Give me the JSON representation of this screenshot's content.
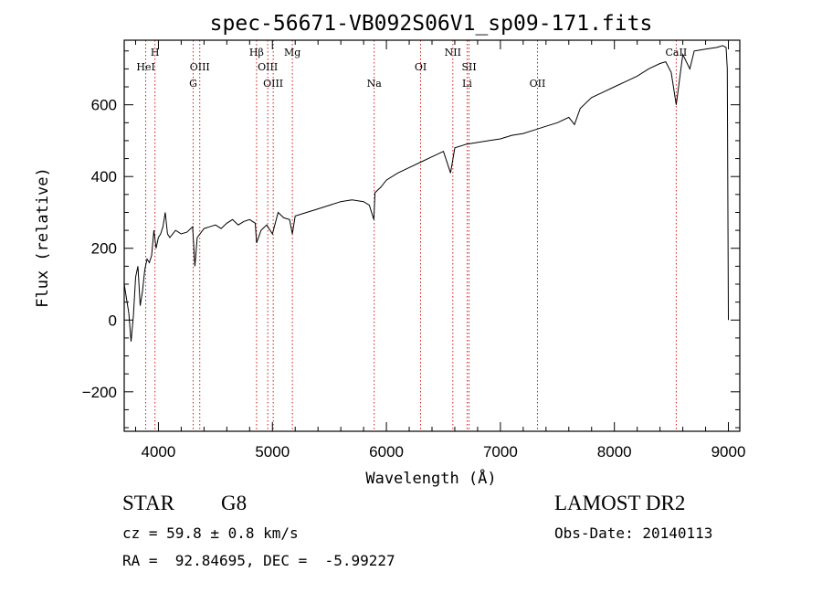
{
  "chart_data": {
    "type": "line",
    "title": "spec-56671-VB092S06V1_sp09-171.fits",
    "xlabel": "Wavelength (Å)",
    "ylabel": "Flux (relative)",
    "xlim": [
      3700,
      9100
    ],
    "ylim": [
      -310,
      780
    ],
    "x_ticks": [
      4000,
      5000,
      6000,
      7000,
      8000,
      9000
    ],
    "y_ticks": [
      -200,
      0,
      200,
      400,
      600
    ],
    "x_tick_labels": [
      "4000",
      "5000",
      "6000",
      "7000",
      "8000",
      "9000"
    ],
    "y_tick_labels": [
      "−200",
      "0",
      "200",
      "400",
      "600"
    ],
    "grid": false,
    "series": [
      {
        "x": [
          3700,
          3720,
          3740,
          3760,
          3780,
          3800,
          3820,
          3840,
          3860,
          3880,
          3900,
          3920,
          3940,
          3960,
          3980,
          4000,
          4020,
          4040,
          4060,
          4080,
          4100,
          4150,
          4200,
          4250,
          4300,
          4320,
          4340,
          4400,
          4450,
          4500,
          4550,
          4600,
          4650,
          4700,
          4750,
          4800,
          4850,
          4861,
          4900,
          4950,
          5000,
          5050,
          5100,
          5150,
          5175,
          5200,
          5300,
          5400,
          5500,
          5600,
          5700,
          5800,
          5850,
          5890,
          5900,
          5950,
          6000,
          6100,
          6200,
          6300,
          6400,
          6500,
          6563,
          6600,
          6700,
          6800,
          6900,
          7000,
          7100,
          7200,
          7300,
          7400,
          7500,
          7600,
          7650,
          7700,
          7800,
          7900,
          8000,
          8100,
          8200,
          8300,
          8400,
          8450,
          8498,
          8542,
          8600,
          8662,
          8700,
          8800,
          8900,
          8950,
          8980,
          8990,
          9000
        ],
        "y": [
          100,
          60,
          20,
          -60,
          10,
          120,
          150,
          40,
          80,
          140,
          170,
          160,
          180,
          250,
          200,
          230,
          240,
          260,
          300,
          240,
          230,
          250,
          240,
          245,
          260,
          150,
          230,
          255,
          260,
          265,
          255,
          270,
          280,
          265,
          275,
          280,
          270,
          215,
          250,
          265,
          240,
          300,
          285,
          280,
          240,
          290,
          300,
          310,
          320,
          330,
          335,
          330,
          320,
          280,
          355,
          370,
          390,
          410,
          425,
          440,
          455,
          470,
          410,
          480,
          490,
          495,
          500,
          505,
          515,
          520,
          530,
          540,
          550,
          565,
          545,
          590,
          620,
          635,
          650,
          665,
          680,
          700,
          715,
          720,
          690,
          600,
          740,
          700,
          750,
          755,
          760,
          765,
          760,
          700,
          0
        ]
      }
    ],
    "spectral_lines": [
      {
        "label": "HeI",
        "wavelength": 3889,
        "row": 2
      },
      {
        "label": "H",
        "wavelength": 3970,
        "row": 1
      },
      {
        "label": "OIII",
        "wavelength": 4363,
        "row": 2
      },
      {
        "label": "G",
        "wavelength": 4305,
        "row": 3
      },
      {
        "label": "Hβ",
        "wavelength": 4861,
        "row": 1
      },
      {
        "label": "OIII",
        "wavelength": 4959,
        "row": 2
      },
      {
        "label": "OIII",
        "wavelength": 5007,
        "row": 3
      },
      {
        "label": "Mg",
        "wavelength": 5175,
        "row": 1
      },
      {
        "label": "Na",
        "wavelength": 5893,
        "row": 3
      },
      {
        "label": "OI",
        "wavelength": 6300,
        "row": 2
      },
      {
        "label": "NII",
        "wavelength": 6583,
        "row": 1
      },
      {
        "label": "Li",
        "wavelength": 6708,
        "row": 3
      },
      {
        "label": "OII",
        "wavelength": 7325,
        "row": 3
      },
      {
        "label": "SII",
        "wavelength": 6725,
        "row": 2
      },
      {
        "label": "CaII",
        "wavelength": 8542,
        "row": 1
      }
    ]
  },
  "info": {
    "object_class": "STAR",
    "subclass": "G8",
    "survey": "LAMOST DR2",
    "redshift": "cz = 59.8 ± 0.8 km/s",
    "obs_date": "Obs-Date: 20140113",
    "coords": "RA =  92.84695, DEC =  -5.99227"
  },
  "colors": {
    "spectrum": "#000000",
    "line_markers": "#cc0000",
    "axes": "#000000"
  }
}
